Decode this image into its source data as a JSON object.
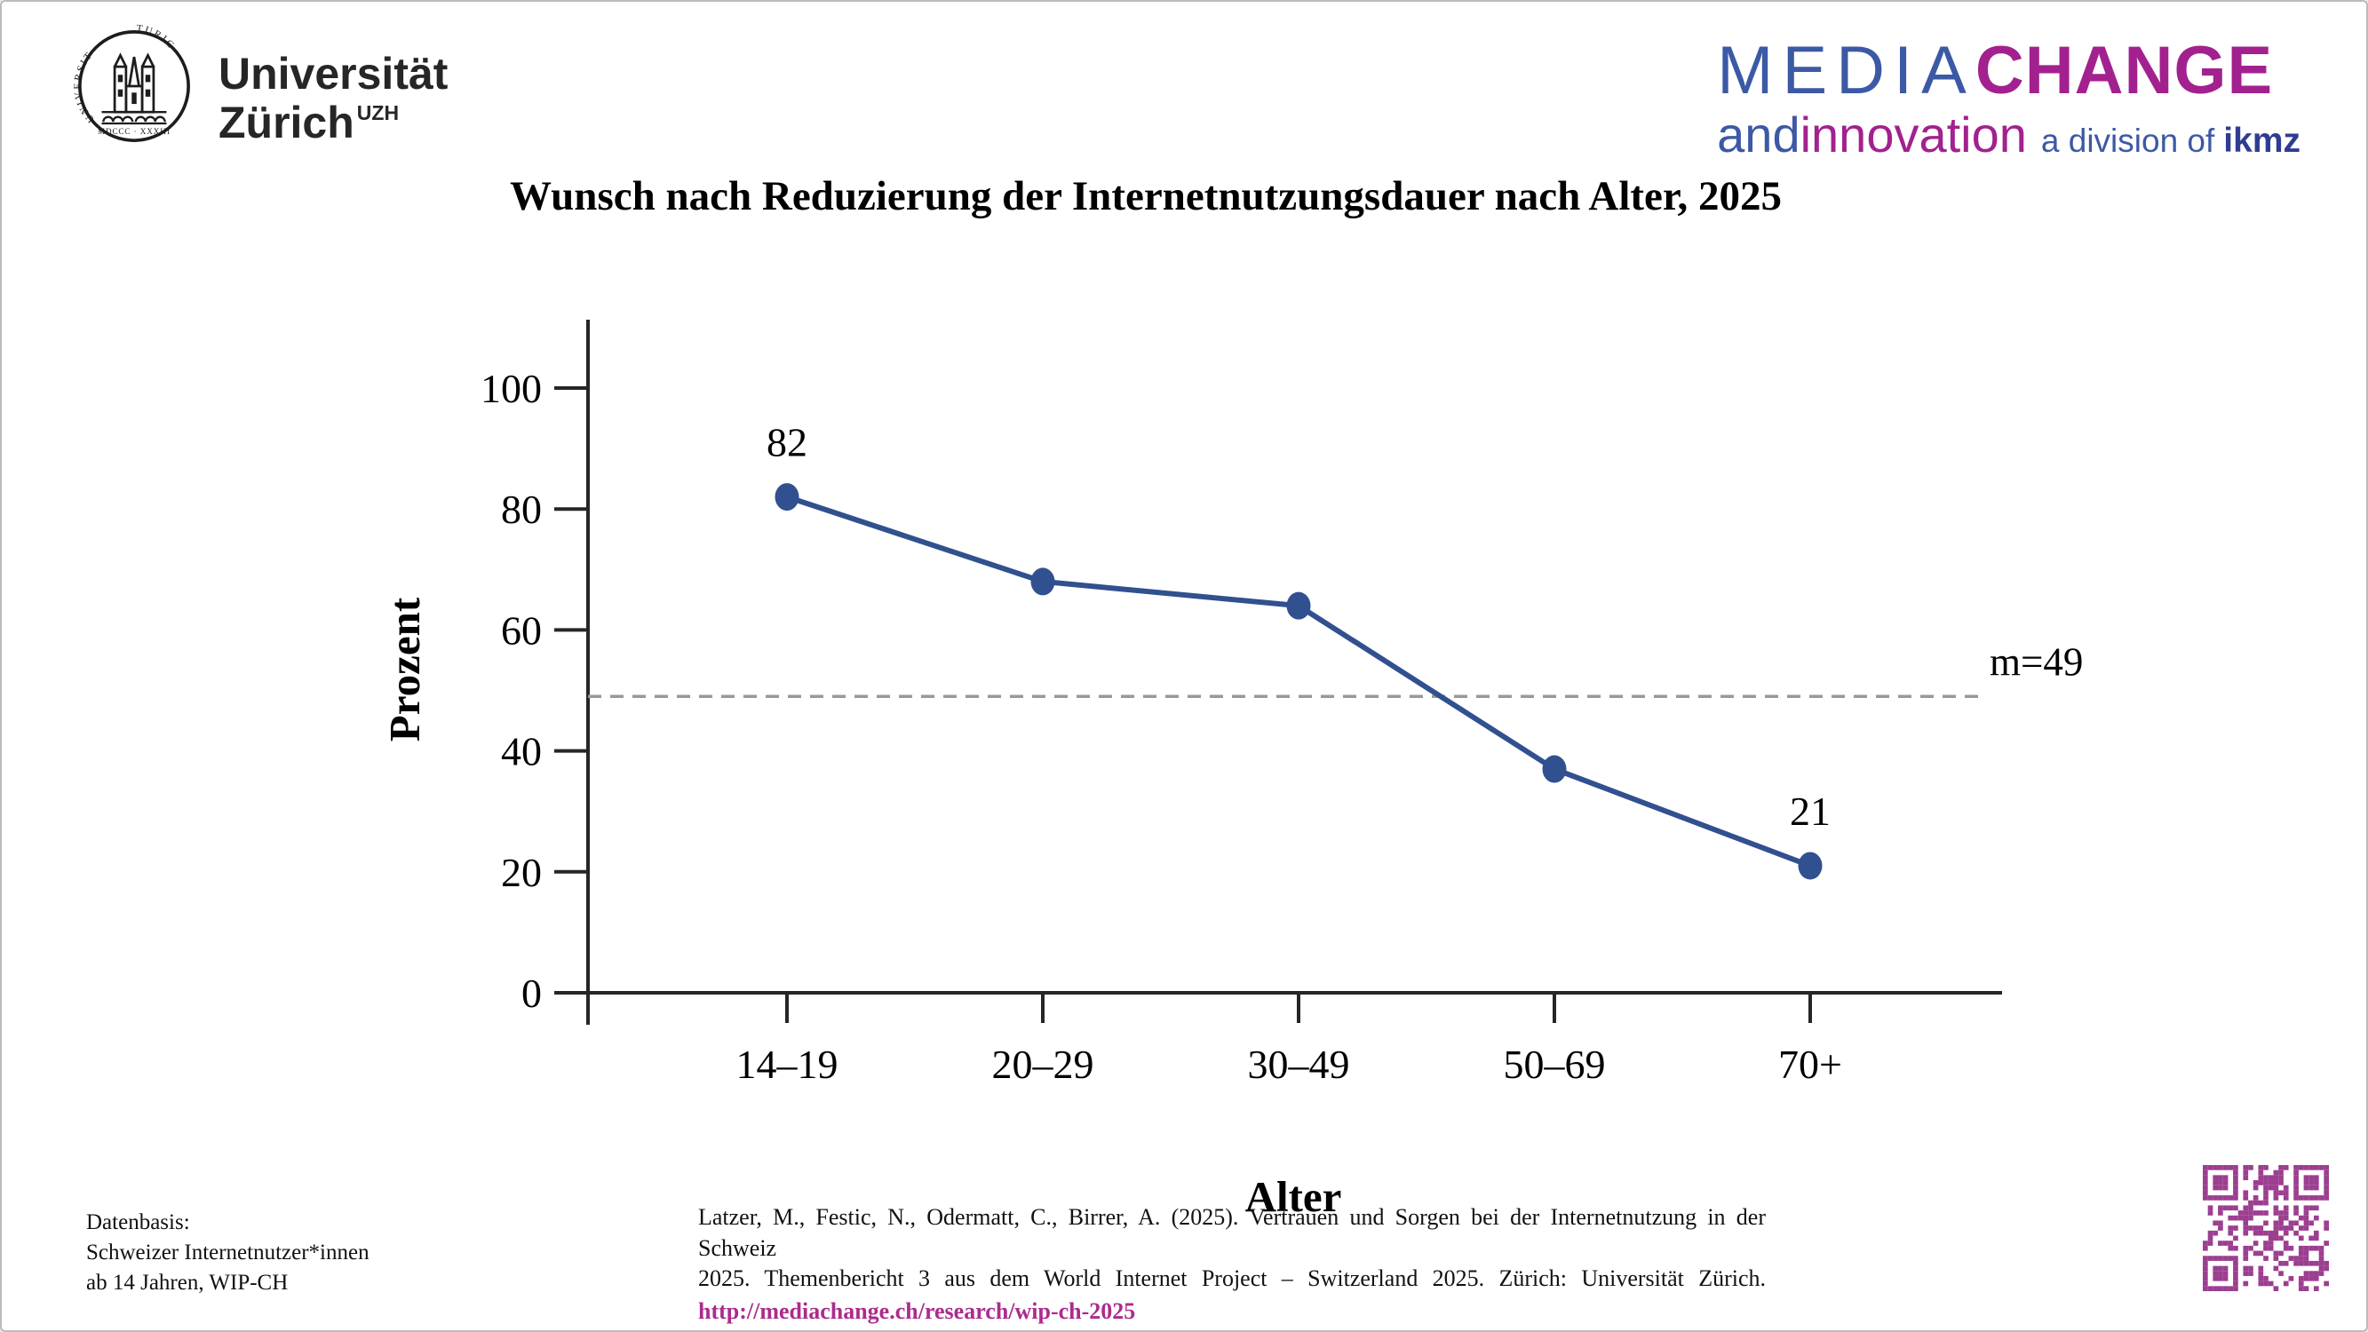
{
  "page": {
    "title": "Wunsch nach Reduzierung der Internetnutzungsdauer nach Alter, 2025"
  },
  "header": {
    "uzh_logo": {
      "name_line1": "Universität",
      "name_line2": "Zürich",
      "superscript": "UZH",
      "seal_motto_left": "UNIVERSITAS",
      "seal_motto_right": "TURICENSIS",
      "seal_year": "MDCCC · XXXIII"
    },
    "mediachange_logo": {
      "media": "MEDIA",
      "change": "CHANGE",
      "and": "and ",
      "innovation": "innovation",
      "division": "a division of",
      "ikmz": "ikmz"
    }
  },
  "chart_data": {
    "type": "line",
    "title": "Wunsch nach Reduzierung der Internetnutzungsdauer nach Alter, 2025",
    "xlabel": "Alter",
    "ylabel": "Prozent",
    "categories": [
      "14–19",
      "20–29",
      "30–49",
      "50–69",
      "70+"
    ],
    "series": [
      {
        "name": "Wunsch nach Reduzierung der Internetnutzungsdauer",
        "values": [
          82,
          68,
          64,
          37,
          21
        ]
      }
    ],
    "point_labels": [
      "82",
      "",
      "",
      "",
      "21"
    ],
    "yticks": [
      0,
      20,
      40,
      60,
      80,
      100
    ],
    "ylim": [
      0,
      100
    ],
    "grid": false,
    "legend": "none",
    "mean_line": {
      "value": 49,
      "label": "m=49",
      "style": "dashed"
    }
  },
  "footer": {
    "datenbasis": [
      "Datenbasis:",
      "Schweizer Internetnutzer*innen",
      "ab 14 Jahren, WIP-CH"
    ],
    "citation_lines": [
      "Latzer, M., Festic, N., Odermatt, C., Birrer, A. (2025). Vertrauen und Sorgen bei der Internetnutzung in der Schweiz",
      "2025. Themenbericht 3 aus dem World Internet Project – Switzerland 2025. Zürich: Universität Zürich."
    ],
    "citation_link": "http://mediachange.ch/research/wip-ch-2025"
  },
  "colors": {
    "series_line": "#31508F",
    "mean_line": "#999999",
    "axis": "#262626",
    "text": "#000000",
    "media_blue": "#3C59A5",
    "change_magenta": "#A2218F",
    "ikmz_blue": "#2E3D92",
    "link_magenta": "#AC2B8D",
    "qr_purple": "#9C3E90"
  }
}
